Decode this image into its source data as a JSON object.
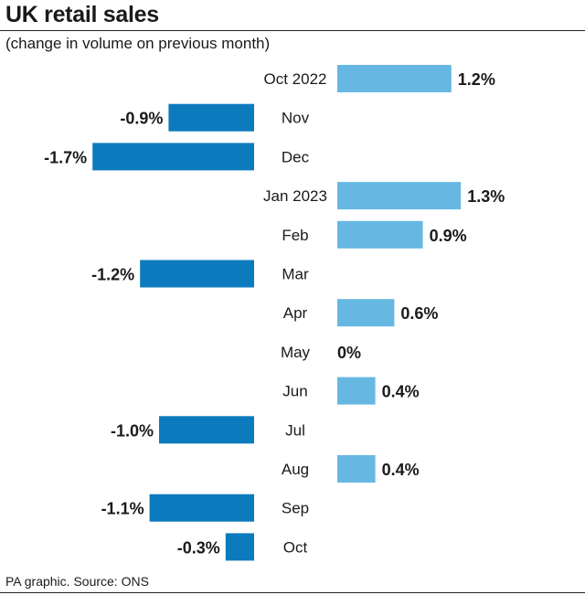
{
  "header": {
    "title": "UK retail sales",
    "subtitle": "(change in volume on previous month)"
  },
  "footer": {
    "source": "PA graphic. Source: ONS"
  },
  "colors": {
    "positive": "#66b8e3",
    "negative": "#0c7bbd",
    "text": "#1a1a1a"
  },
  "chart_data": {
    "type": "bar",
    "orientation": "horizontal",
    "categories": [
      "Oct 2022",
      "Nov",
      "Dec",
      "Jan 2023",
      "Feb",
      "Mar",
      "Apr",
      "May",
      "Jun",
      "Jul",
      "Aug",
      "Sep",
      "Oct"
    ],
    "values": [
      1.2,
      -0.9,
      -1.7,
      1.3,
      0.9,
      -1.2,
      0.6,
      0,
      0.4,
      -1.0,
      0.4,
      -1.1,
      -0.3
    ],
    "value_labels": [
      "1.2%",
      "-0.9%",
      "-1.7%",
      "1.3%",
      "0.9%",
      "-1.2%",
      "0.6%",
      "0%",
      "0.4%",
      "-1.0%",
      "0.4%",
      "-1.1%",
      "-0.3%"
    ],
    "title": "UK retail sales",
    "subtitle": "(change in volume on previous month)",
    "unit": "%",
    "grid": false,
    "legend": "none"
  }
}
